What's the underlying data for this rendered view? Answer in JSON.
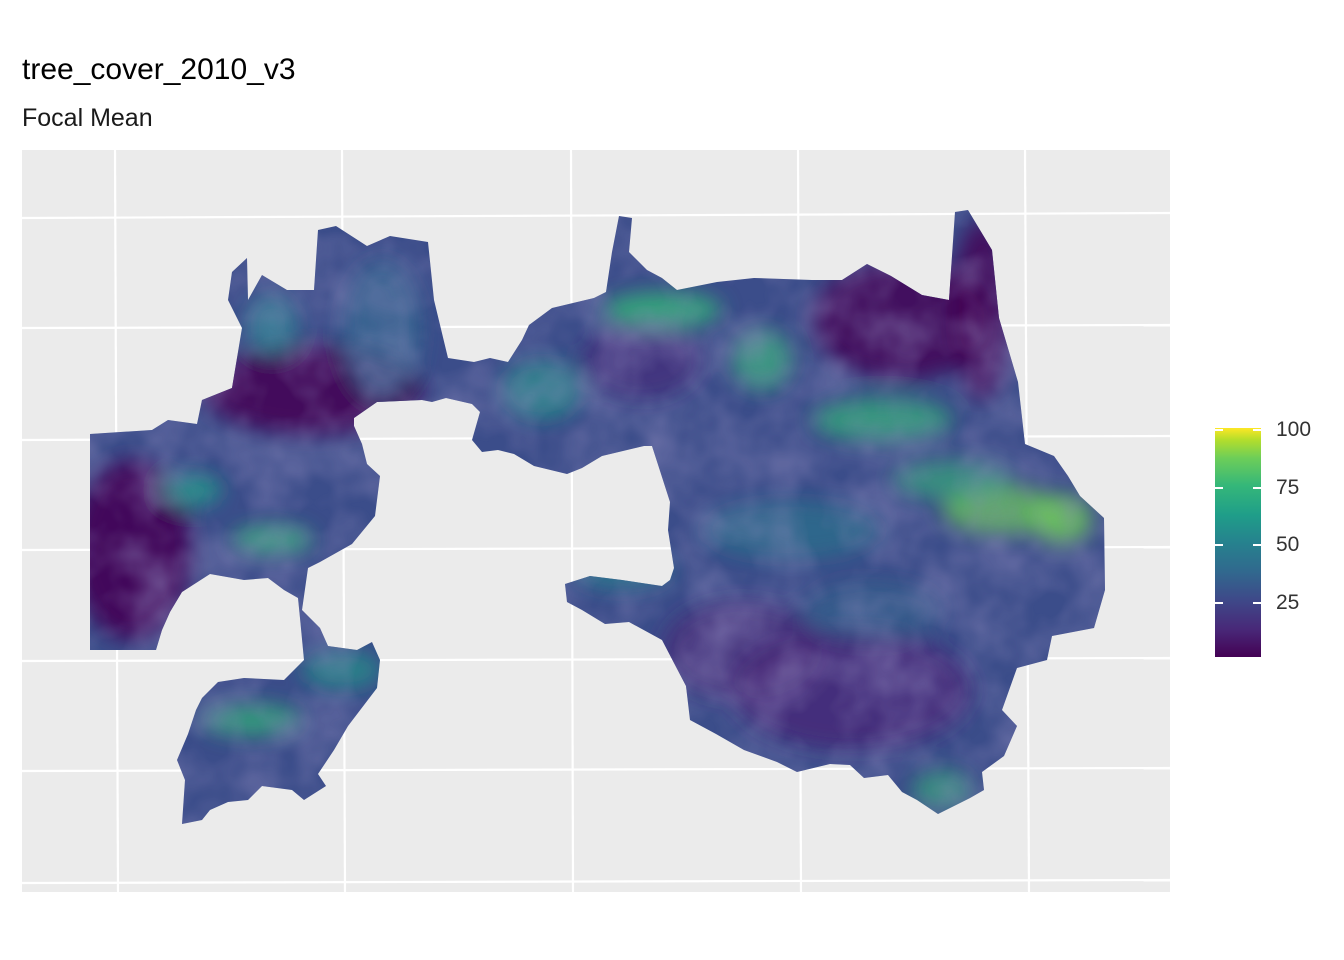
{
  "title": "tree_cover_2010_v3",
  "subtitle": "Focal Mean",
  "colors": {
    "panel_bg": "#ebebeb",
    "grid": "#ffffff",
    "palette": [
      "#440154",
      "#482878",
      "#3e4989",
      "#31688e",
      "#26828e",
      "#1f9e89",
      "#35b779",
      "#6ece58",
      "#b5de2b",
      "#fde725"
    ]
  },
  "legend": {
    "scale": "viridis",
    "min": 0,
    "max": 100,
    "ticks": [
      "100",
      "75",
      "50",
      "25"
    ]
  }
}
